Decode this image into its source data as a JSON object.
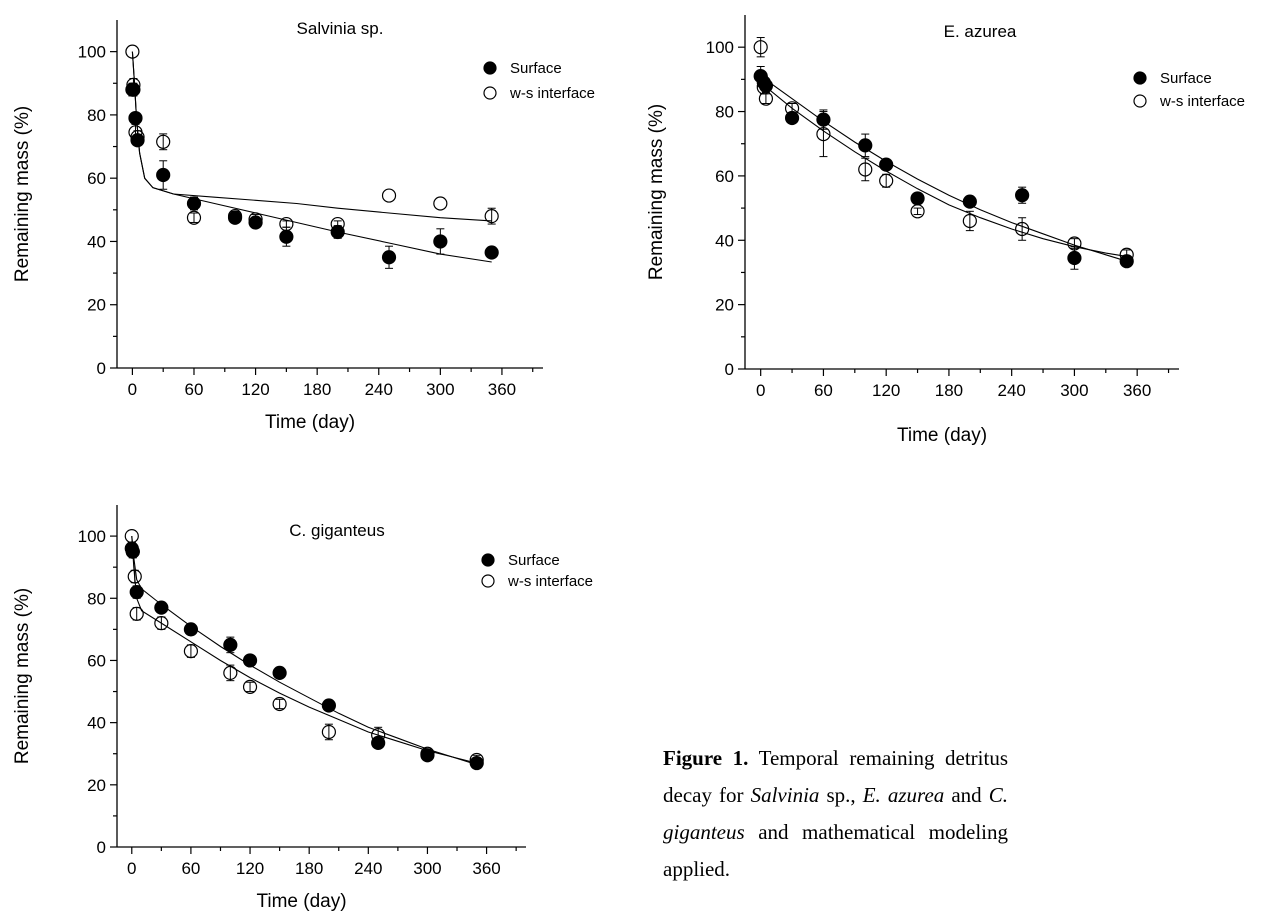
{
  "chart_data": [
    {
      "type": "scatter",
      "title": "Salvinia sp.",
      "xlabel": "Time (day)",
      "ylabel": "Remaining mass (%)",
      "xlim": [
        -15,
        400
      ],
      "ylim": [
        0,
        110
      ],
      "xticks": [
        0,
        60,
        120,
        180,
        240,
        300,
        360
      ],
      "yticks": [
        0,
        20,
        40,
        60,
        80,
        100
      ],
      "legend_position": "top-right",
      "series": [
        {
          "name": "Surface",
          "marker": "filled-circle",
          "x": [
            0,
            1,
            3,
            5,
            30,
            60,
            100,
            120,
            150,
            200,
            250,
            300,
            350
          ],
          "y": [
            88,
            88,
            79,
            72,
            61,
            52,
            47.5,
            46,
            41.5,
            43,
            35,
            40,
            36.5
          ],
          "err": [
            2,
            2,
            1.5,
            1.5,
            4.5,
            2,
            1.5,
            1.5,
            3,
            2,
            3.5,
            4,
            0
          ],
          "fit": [
            [
              0,
              100
            ],
            [
              2,
              90
            ],
            [
              4,
              79
            ],
            [
              7,
              68
            ],
            [
              12,
              60
            ],
            [
              20,
              57
            ],
            [
              40,
              55
            ],
            [
              80,
              52
            ],
            [
              120,
              49
            ],
            [
              160,
              46
            ],
            [
              200,
              43
            ],
            [
              250,
              39.5
            ],
            [
              300,
              36
            ],
            [
              350,
              33.5
            ]
          ]
        },
        {
          "name": "w-s interface",
          "marker": "open-circle",
          "x": [
            0,
            1,
            3,
            5,
            30,
            60,
            100,
            120,
            150,
            200,
            250,
            300,
            350
          ],
          "y": [
            100,
            89.5,
            74.5,
            73,
            71.5,
            47.5,
            48,
            47,
            45.5,
            45.5,
            54.5,
            52,
            48
          ],
          "err": [
            0,
            2,
            2.5,
            2,
            2.5,
            1.5,
            1.5,
            1.5,
            1,
            1,
            0,
            0,
            2.5
          ],
          "fit": [
            [
              0,
              100
            ],
            [
              2,
              90
            ],
            [
              4,
              79
            ],
            [
              7,
              68
            ],
            [
              12,
              60
            ],
            [
              20,
              57
            ],
            [
              40,
              55
            ],
            [
              80,
              54
            ],
            [
              120,
              53
            ],
            [
              160,
              52
            ],
            [
              200,
              50.5
            ],
            [
              250,
              49
            ],
            [
              300,
              47.5
            ],
            [
              350,
              46.5
            ]
          ]
        }
      ]
    },
    {
      "type": "scatter",
      "title": "E. azurea",
      "xlabel": "Time (day)",
      "ylabel": "Remaining mass (%)",
      "xlim": [
        -15,
        400
      ],
      "ylim": [
        0,
        110
      ],
      "xticks": [
        0,
        60,
        120,
        180,
        240,
        300,
        360
      ],
      "yticks": [
        0,
        20,
        40,
        60,
        80,
        100
      ],
      "legend_position": "top-right",
      "series": [
        {
          "name": "Surface",
          "marker": "filled-circle",
          "x": [
            0,
            3,
            5,
            30,
            60,
            100,
            120,
            150,
            200,
            250,
            300,
            350
          ],
          "y": [
            91,
            89,
            88,
            78,
            77.5,
            69.5,
            63.5,
            53,
            52,
            54,
            34.5,
            33.5
          ],
          "err": [
            3,
            2,
            2,
            1.5,
            3,
            3.5,
            1.5,
            1.5,
            1.5,
            2.5,
            3.5,
            1.5
          ],
          "fit": [
            [
              0,
              91
            ],
            [
              30,
              84
            ],
            [
              60,
              77
            ],
            [
              90,
              70.5
            ],
            [
              120,
              64.5
            ],
            [
              150,
              59
            ],
            [
              180,
              54
            ],
            [
              210,
              49.5
            ],
            [
              240,
              45.5
            ],
            [
              270,
              42
            ],
            [
              300,
              38.5
            ],
            [
              330,
              35.5
            ],
            [
              350,
              33.5
            ]
          ]
        },
        {
          "name": "w-s interface",
          "marker": "open-circle",
          "x": [
            0,
            3,
            5,
            30,
            60,
            100,
            120,
            150,
            200,
            250,
            300,
            350
          ],
          "y": [
            100,
            87.5,
            84,
            81,
            73,
            62,
            58.5,
            49,
            46,
            43.5,
            39,
            35.5
          ],
          "err": [
            3,
            2,
            1.5,
            1.5,
            7,
            3.5,
            2,
            1,
            3,
            3.5,
            1.5,
            1.5
          ],
          "fit": [
            [
              0,
              89
            ],
            [
              30,
              81
            ],
            [
              60,
              74
            ],
            [
              90,
              67.5
            ],
            [
              120,
              61.5
            ],
            [
              150,
              56
            ],
            [
              180,
              51
            ],
            [
              210,
              47
            ],
            [
              240,
              43.5
            ],
            [
              270,
              40.5
            ],
            [
              300,
              38
            ],
            [
              330,
              36
            ],
            [
              350,
              35
            ]
          ]
        }
      ]
    },
    {
      "type": "scatter",
      "title": "C. giganteus",
      "xlabel": "Time (day)",
      "ylabel": "Remaining mass (%)",
      "xlim": [
        -15,
        400
      ],
      "ylim": [
        0,
        110
      ],
      "xticks": [
        0,
        60,
        120,
        180,
        240,
        300,
        360
      ],
      "yticks": [
        0,
        20,
        40,
        60,
        80,
        100
      ],
      "legend_position": "top-right",
      "series": [
        {
          "name": "Surface",
          "marker": "filled-circle",
          "x": [
            0,
            1,
            5,
            30,
            60,
            100,
            120,
            150,
            200,
            250,
            300,
            350
          ],
          "y": [
            96,
            95,
            82,
            77,
            70,
            65,
            60,
            56,
            45.5,
            33.5,
            29.5,
            27
          ],
          "err": [
            2,
            2,
            2,
            1.5,
            1.5,
            2.5,
            1.5,
            1.5,
            1.5,
            1.5,
            1.5,
            1
          ],
          "fit": [
            [
              0,
              100
            ],
            [
              2,
              93
            ],
            [
              5,
              86
            ],
            [
              10,
              83
            ],
            [
              30,
              78
            ],
            [
              60,
              71
            ],
            [
              90,
              64.5
            ],
            [
              120,
              58.5
            ],
            [
              150,
              53
            ],
            [
              180,
              48
            ],
            [
              210,
              43
            ],
            [
              240,
              38.5
            ],
            [
              270,
              35
            ],
            [
              300,
              31.5
            ],
            [
              350,
              26.5
            ]
          ]
        },
        {
          "name": "w-s interface",
          "marker": "open-circle",
          "x": [
            0,
            1,
            3,
            5,
            30,
            60,
            100,
            120,
            150,
            200,
            250,
            300,
            350
          ],
          "y": [
            100,
            95,
            87,
            75,
            72,
            63,
            56,
            51.5,
            46,
            37,
            36,
            30,
            28
          ],
          "err": [
            0,
            0,
            2,
            2,
            2,
            2,
            2.5,
            1.5,
            1.5,
            2.5,
            2.5,
            1.5,
            1.5
          ],
          "fit": [
            [
              0,
              100
            ],
            [
              2,
              90
            ],
            [
              5,
              80
            ],
            [
              10,
              76
            ],
            [
              30,
              72
            ],
            [
              60,
              66
            ],
            [
              90,
              60
            ],
            [
              120,
              54.5
            ],
            [
              150,
              49.5
            ],
            [
              180,
              45
            ],
            [
              210,
              41
            ],
            [
              240,
              37
            ],
            [
              270,
              34
            ],
            [
              300,
              31
            ],
            [
              350,
              27
            ]
          ]
        }
      ]
    }
  ],
  "caption": {
    "label": "Figure 1.",
    "t1": " Temporal remaining detritus decay for ",
    "sp1": "Salvinia",
    "t2": " sp., ",
    "sp2": "E. azurea",
    "t3": " and ",
    "sp3": "C. giganteus",
    "t4": " and mathematical modeling applied."
  }
}
